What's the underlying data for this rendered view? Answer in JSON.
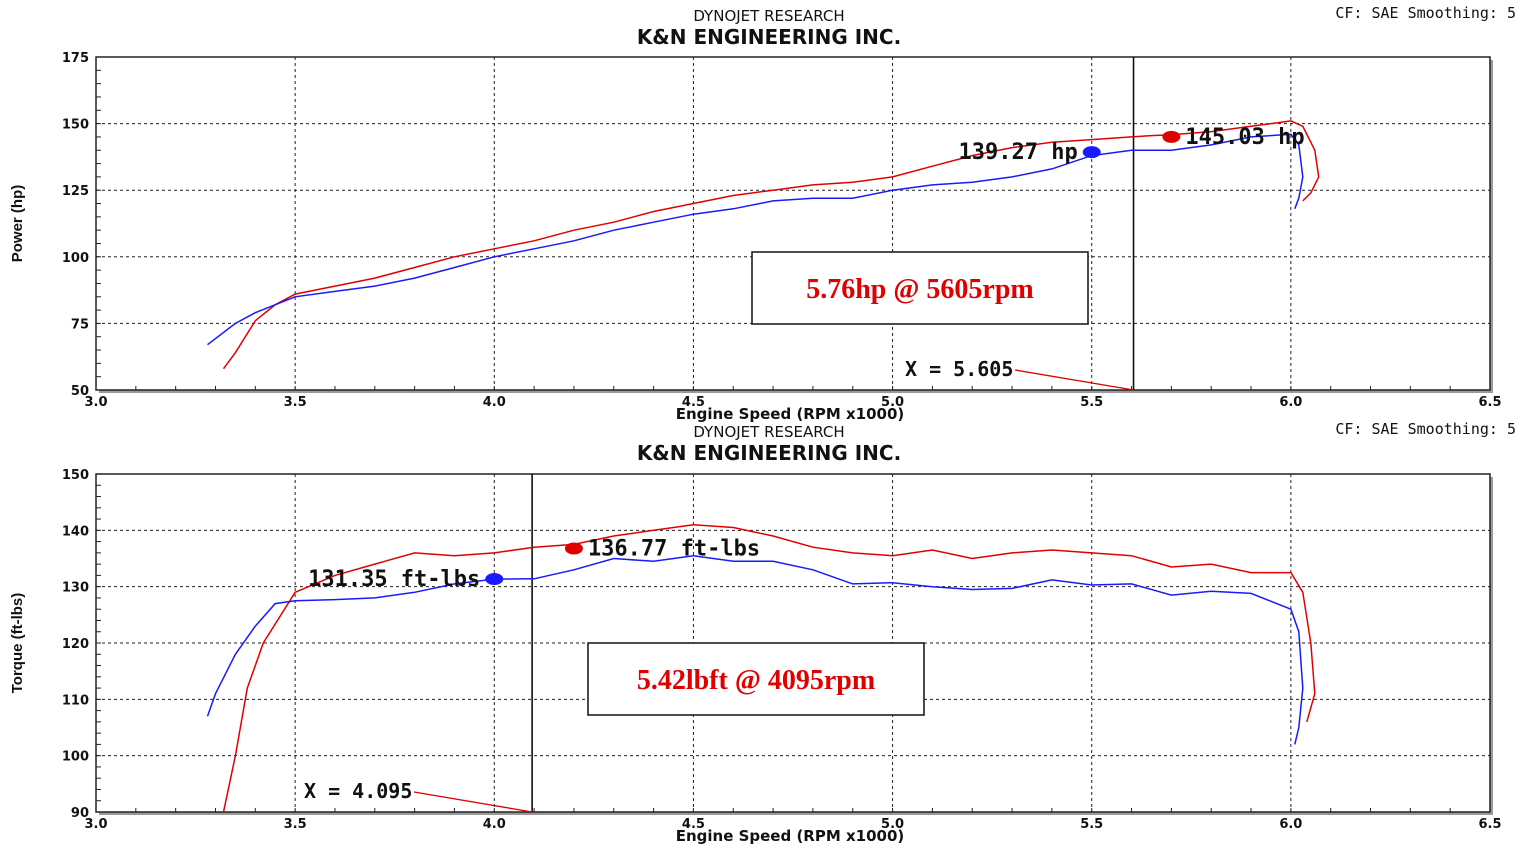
{
  "chart_data": [
    {
      "type": "line",
      "brand": "DYNOJET RESEARCH",
      "title": "K&N ENGINEERING INC.",
      "corner_info": "CF: SAE   Smoothing: 5",
      "xlabel": "Engine Speed (RPM x1000)",
      "ylabel": "Power (hp)",
      "xlim": [
        3.0,
        6.5
      ],
      "ylim": [
        50,
        175
      ],
      "xticks": [
        "3.0",
        "3.5",
        "4.0",
        "4.5",
        "5.0",
        "5.5",
        "6.0",
        "6.5"
      ],
      "yticks": [
        "50",
        "75",
        "100",
        "125",
        "150",
        "175"
      ],
      "grid": true,
      "series": [
        {
          "color": "#e00000",
          "points": [
            [
              3.32,
              58
            ],
            [
              3.35,
              64
            ],
            [
              3.4,
              76
            ],
            [
              3.45,
              82
            ],
            [
              3.5,
              86
            ],
            [
              3.6,
              89
            ],
            [
              3.7,
              92
            ],
            [
              3.8,
              96
            ],
            [
              3.9,
              100
            ],
            [
              4.0,
              103
            ],
            [
              4.1,
              106
            ],
            [
              4.2,
              110
            ],
            [
              4.3,
              113
            ],
            [
              4.4,
              117
            ],
            [
              4.5,
              120
            ],
            [
              4.6,
              123
            ],
            [
              4.7,
              125
            ],
            [
              4.8,
              127
            ],
            [
              4.9,
              128
            ],
            [
              5.0,
              130
            ],
            [
              5.1,
              134
            ],
            [
              5.2,
              138
            ],
            [
              5.3,
              141
            ],
            [
              5.4,
              143
            ],
            [
              5.5,
              144
            ],
            [
              5.6,
              145
            ],
            [
              5.65,
              145.5
            ],
            [
              5.7,
              145.8
            ],
            [
              5.8,
              147
            ],
            [
              5.9,
              149
            ],
            [
              6.0,
              151
            ],
            [
              6.03,
              149
            ],
            [
              6.06,
              140
            ],
            [
              6.07,
              130
            ],
            [
              6.05,
              124
            ],
            [
              6.03,
              121
            ]
          ]
        },
        {
          "color": "#1a1aff",
          "points": [
            [
              3.28,
              67
            ],
            [
              3.35,
              75
            ],
            [
              3.4,
              79
            ],
            [
              3.5,
              85
            ],
            [
              3.6,
              87
            ],
            [
              3.7,
              89
            ],
            [
              3.8,
              92
            ],
            [
              3.9,
              96
            ],
            [
              4.0,
              100
            ],
            [
              4.1,
              103
            ],
            [
              4.2,
              106
            ],
            [
              4.3,
              110
            ],
            [
              4.4,
              113
            ],
            [
              4.5,
              116
            ],
            [
              4.6,
              118
            ],
            [
              4.7,
              121
            ],
            [
              4.8,
              122
            ],
            [
              4.9,
              122
            ],
            [
              5.0,
              125
            ],
            [
              5.1,
              127
            ],
            [
              5.2,
              128
            ],
            [
              5.3,
              130
            ],
            [
              5.4,
              133
            ],
            [
              5.5,
              138
            ],
            [
              5.6,
              140
            ],
            [
              5.7,
              140
            ],
            [
              5.8,
              142
            ],
            [
              5.9,
              145
            ],
            [
              6.0,
              146
            ],
            [
              6.02,
              142
            ],
            [
              6.03,
              130
            ],
            [
              6.02,
              122
            ],
            [
              6.01,
              118
            ]
          ]
        }
      ],
      "markers": [
        {
          "x": 5.5,
          "y": 139.27,
          "color": "#1a1aff",
          "label": "139.27 hp"
        },
        {
          "x": 5.7,
          "y": 145.03,
          "color": "#e00000",
          "label": "145.03 hp"
        }
      ],
      "cursor": {
        "x": 5.605,
        "label": "X = 5.605"
      },
      "annotation": "5.76hp @ 5605rpm"
    },
    {
      "type": "line",
      "brand": "DYNOJET RESEARCH",
      "title": "K&N ENGINEERING INC.",
      "corner_info": "CF: SAE   Smoothing: 5",
      "xlabel": "Engine Speed (RPM x1000)",
      "ylabel": "Torque (ft-lbs)",
      "xlim": [
        3.0,
        6.5
      ],
      "ylim": [
        90,
        150
      ],
      "xticks": [
        "3.0",
        "3.5",
        "4.0",
        "4.5",
        "5.0",
        "5.5",
        "6.0",
        "6.5"
      ],
      "yticks": [
        "90",
        "100",
        "110",
        "120",
        "130",
        "140",
        "150"
      ],
      "grid": true,
      "series": [
        {
          "color": "#e00000",
          "points": [
            [
              3.32,
              90
            ],
            [
              3.35,
              100
            ],
            [
              3.38,
              112
            ],
            [
              3.42,
              120
            ],
            [
              3.5,
              129
            ],
            [
              3.6,
              132
            ],
            [
              3.7,
              134
            ],
            [
              3.8,
              136
            ],
            [
              3.9,
              135.5
            ],
            [
              4.0,
              136
            ],
            [
              4.1,
              137
            ],
            [
              4.2,
              137.5
            ],
            [
              4.3,
              139
            ],
            [
              4.4,
              140
            ],
            [
              4.5,
              141
            ],
            [
              4.6,
              140.5
            ],
            [
              4.7,
              139
            ],
            [
              4.8,
              137
            ],
            [
              4.9,
              136
            ],
            [
              5.0,
              135.5
            ],
            [
              5.1,
              136.5
            ],
            [
              5.2,
              135
            ],
            [
              5.3,
              136
            ],
            [
              5.4,
              136.5
            ],
            [
              5.5,
              136
            ],
            [
              5.6,
              135.5
            ],
            [
              5.7,
              133.5
            ],
            [
              5.8,
              134
            ],
            [
              5.9,
              132.5
            ],
            [
              6.0,
              132.5
            ],
            [
              6.03,
              129
            ],
            [
              6.05,
              120
            ],
            [
              6.06,
              111
            ],
            [
              6.04,
              106
            ]
          ]
        },
        {
          "color": "#1a1aff",
          "points": [
            [
              3.28,
              107
            ],
            [
              3.3,
              111
            ],
            [
              3.35,
              118
            ],
            [
              3.4,
              123
            ],
            [
              3.45,
              127
            ],
            [
              3.5,
              127.5
            ],
            [
              3.6,
              127.7
            ],
            [
              3.7,
              128
            ],
            [
              3.8,
              129
            ],
            [
              3.9,
              130.5
            ],
            [
              4.0,
              131.35
            ],
            [
              4.1,
              131.4
            ],
            [
              4.2,
              133
            ],
            [
              4.3,
              135
            ],
            [
              4.4,
              134.5
            ],
            [
              4.5,
              135.5
            ],
            [
              4.6,
              134.5
            ],
            [
              4.7,
              134.5
            ],
            [
              4.8,
              133
            ],
            [
              4.9,
              130.5
            ],
            [
              5.0,
              130.7
            ],
            [
              5.1,
              130
            ],
            [
              5.2,
              129.5
            ],
            [
              5.3,
              129.7
            ],
            [
              5.4,
              131.2
            ],
            [
              5.5,
              130.3
            ],
            [
              5.6,
              130.5
            ],
            [
              5.7,
              128.5
            ],
            [
              5.8,
              129.2
            ],
            [
              5.9,
              128.8
            ],
            [
              6.0,
              126
            ],
            [
              6.02,
              122
            ],
            [
              6.03,
              112
            ],
            [
              6.02,
              105
            ],
            [
              6.01,
              102
            ]
          ]
        }
      ],
      "markers": [
        {
          "x": 4.0,
          "y": 131.35,
          "color": "#1a1aff",
          "label": "131.35 ft-lbs"
        },
        {
          "x": 4.2,
          "y": 136.77,
          "color": "#e00000",
          "label": "136.77 ft-lbs"
        }
      ],
      "cursor": {
        "x": 4.095,
        "label": "X = 4.095"
      },
      "annotation": "5.42lbft @ 4095rpm"
    }
  ]
}
